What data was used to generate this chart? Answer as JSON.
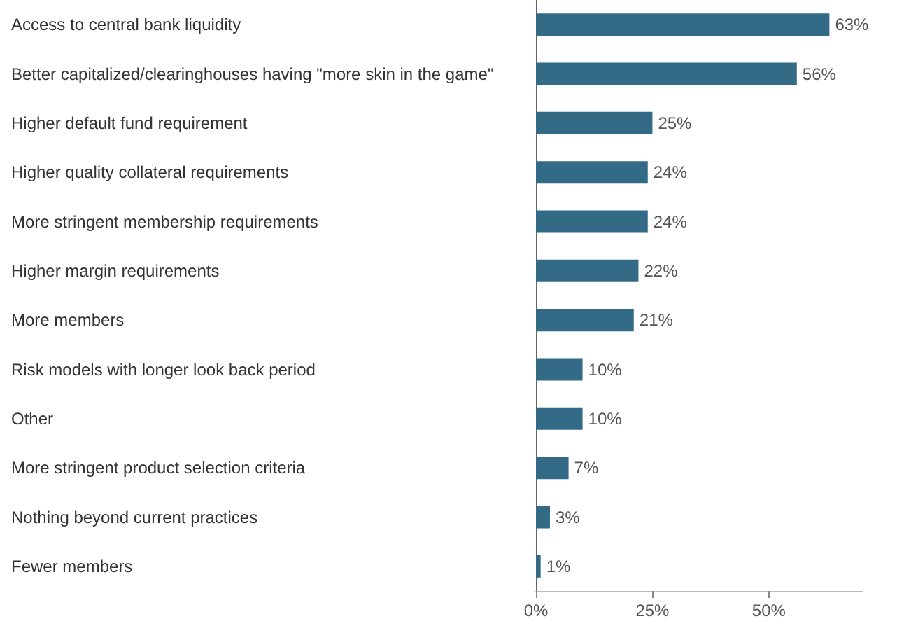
{
  "chart_data": {
    "type": "bar",
    "orientation": "horizontal",
    "categories": [
      "Access to central bank liquidity",
      "Better capitalized/clearinghouses having \"more skin in the game\"",
      "Higher default fund requirement",
      "Higher quality collateral requirements",
      "More stringent membership requirements",
      "Higher margin requirements",
      "More members",
      "Risk models with longer look back period",
      "Other",
      "More stringent product selection criteria",
      "Nothing beyond current practices",
      "Fewer members"
    ],
    "values": [
      63,
      56,
      25,
      24,
      24,
      22,
      21,
      10,
      10,
      7,
      3,
      1
    ],
    "value_labels": [
      "63%",
      "56%",
      "25%",
      "24%",
      "24%",
      "22%",
      "21%",
      "10%",
      "10%",
      "7%",
      "3%",
      "1%"
    ],
    "color": "#336b87",
    "xlim": [
      0,
      70
    ],
    "xticks": [
      {
        "value": 0,
        "label": "0%"
      },
      {
        "value": 25,
        "label": "25%"
      },
      {
        "value": 50,
        "label": "50%"
      }
    ],
    "grid": false
  }
}
